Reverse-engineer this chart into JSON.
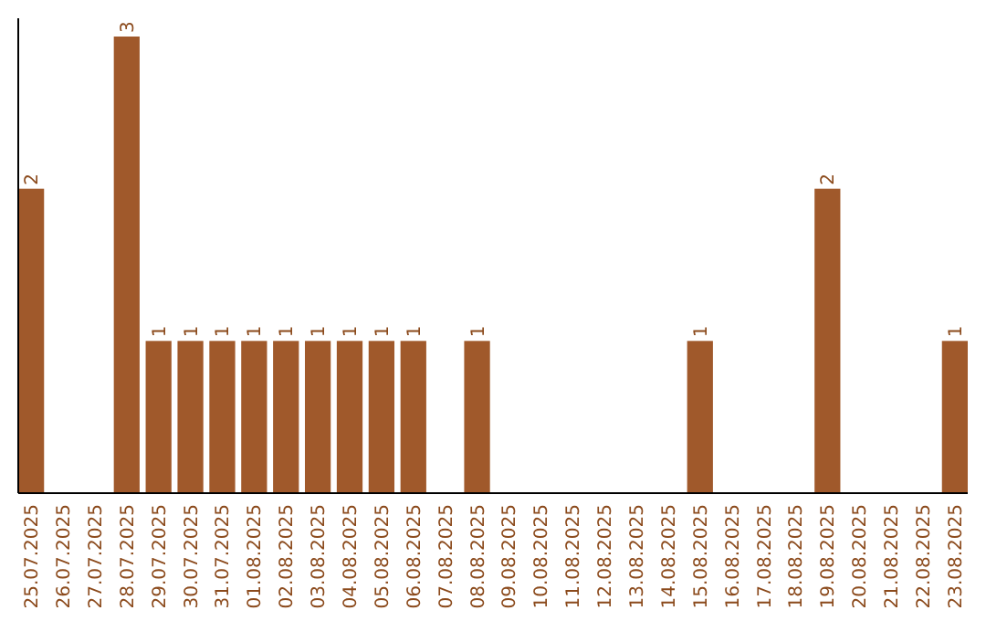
{
  "chart_data": {
    "type": "bar",
    "categories": [
      "25.07.2025",
      "26.07.2025",
      "27.07.2025",
      "28.07.2025",
      "29.07.2025",
      "30.07.2025",
      "31.07.2025",
      "01.08.2025",
      "02.08.2025",
      "03.08.2025",
      "04.08.2025",
      "05.08.2025",
      "06.08.2025",
      "07.08.2025",
      "08.08.2025",
      "09.08.2025",
      "10.08.2025",
      "11.08.2025",
      "12.08.2025",
      "13.08.2025",
      "14.08.2025",
      "15.08.2025",
      "16.08.2025",
      "17.08.2025",
      "18.08.2025",
      "19.08.2025",
      "20.08.2025",
      "21.08.2025",
      "22.08.2025",
      "23.08.2025"
    ],
    "values": [
      2,
      0,
      0,
      3,
      1,
      1,
      1,
      1,
      1,
      1,
      1,
      1,
      1,
      0,
      1,
      0,
      0,
      0,
      0,
      0,
      0,
      1,
      0,
      0,
      0,
      2,
      0,
      0,
      0,
      1
    ],
    "value_labels": [
      "2",
      null,
      null,
      "3",
      "1",
      "1",
      "1",
      "1",
      "1",
      "1",
      "1",
      "1",
      "1",
      null,
      "1",
      null,
      null,
      null,
      null,
      null,
      null,
      "1",
      null,
      null,
      null,
      "2",
      null,
      null,
      null,
      "1"
    ],
    "color": "#a0592b",
    "ylim": [
      0,
      3.12
    ],
    "tick_labels": "x"
  }
}
